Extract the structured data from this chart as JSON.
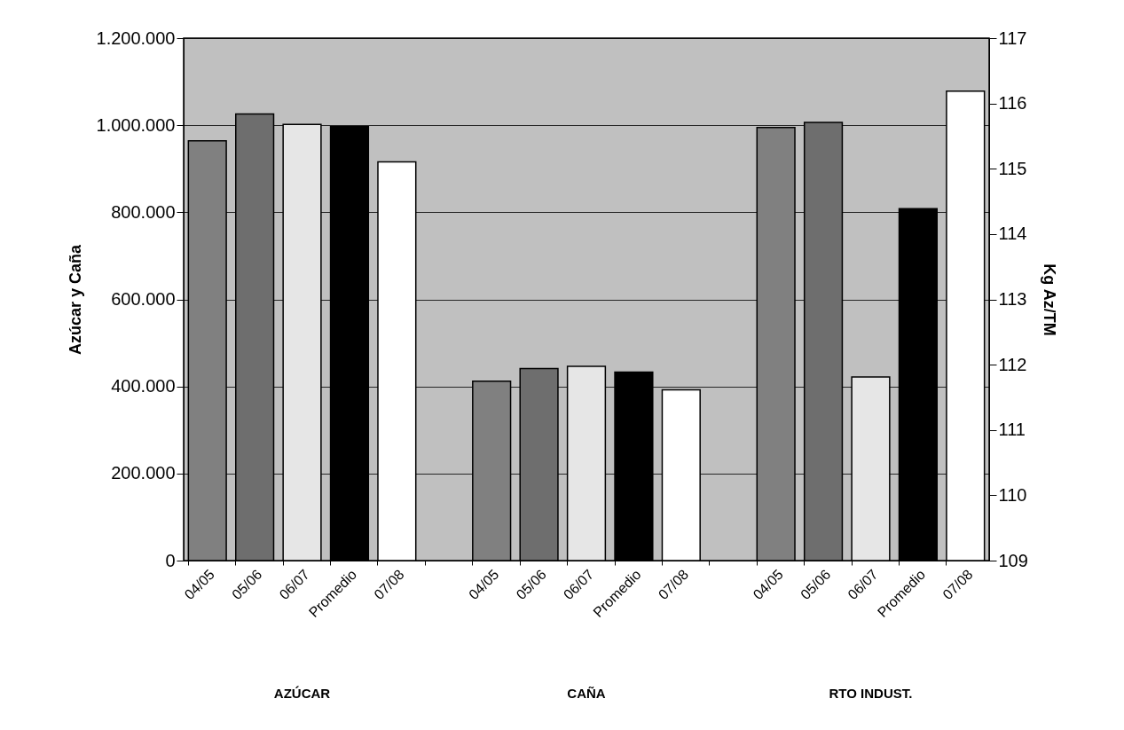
{
  "chart_data": {
    "type": "bar",
    "ylabel": "Azúcar y Caña",
    "y2label": "Kg Az/TM",
    "categories": [
      "04/05",
      "05/06",
      "06/07",
      "Promedio",
      "07/08",
      null,
      "04/05",
      "05/06",
      "06/07",
      "Promedio",
      "07/08",
      null,
      "04/05",
      "05/06",
      "06/07",
      "Promedio",
      "07/08"
    ],
    "series": [
      {
        "axis": "y",
        "values": [
          964000,
          1026000,
          1002000,
          997000,
          916000,
          null,
          412000,
          441000,
          446000,
          433000,
          392000,
          null,
          null,
          null,
          null,
          null,
          null
        ],
        "colors": [
          "#808080",
          "#6e6e6e",
          "#e6e6e6",
          "#000000",
          "#ffffff",
          null,
          "#808080",
          "#6e6e6e",
          "#e6e6e6",
          "#000000",
          "#ffffff",
          null,
          null,
          null,
          null,
          null,
          null
        ]
      },
      {
        "axis": "y2",
        "values": [
          null,
          null,
          null,
          null,
          null,
          null,
          null,
          null,
          null,
          null,
          null,
          null,
          115.63,
          115.71,
          111.81,
          114.39,
          116.19
        ],
        "colors": [
          null,
          null,
          null,
          null,
          null,
          null,
          null,
          null,
          null,
          null,
          null,
          null,
          "#808080",
          "#6e6e6e",
          "#e6e6e6",
          "#000000",
          "#ffffff"
        ]
      }
    ],
    "ylim": [
      0,
      1200000
    ],
    "yticks": [
      0,
      {
        "value": 200000,
        "label": "200.000"
      },
      {
        "value": 400000,
        "label": "400.000"
      },
      {
        "value": 600000,
        "label": "600.000"
      },
      {
        "value": 800000,
        "label": "800.000"
      },
      {
        "value": 1000000,
        "label": "1.000.000"
      },
      {
        "value": 1200000,
        "label": "1.200.000"
      }
    ],
    "y2lim": [
      109,
      117
    ],
    "y2ticks": [
      109,
      110,
      111,
      112,
      113,
      114,
      115,
      116,
      117
    ],
    "grid": "y",
    "annotations": [
      "AZÚCAR",
      "CAÑA",
      "RTO INDUST."
    ]
  }
}
